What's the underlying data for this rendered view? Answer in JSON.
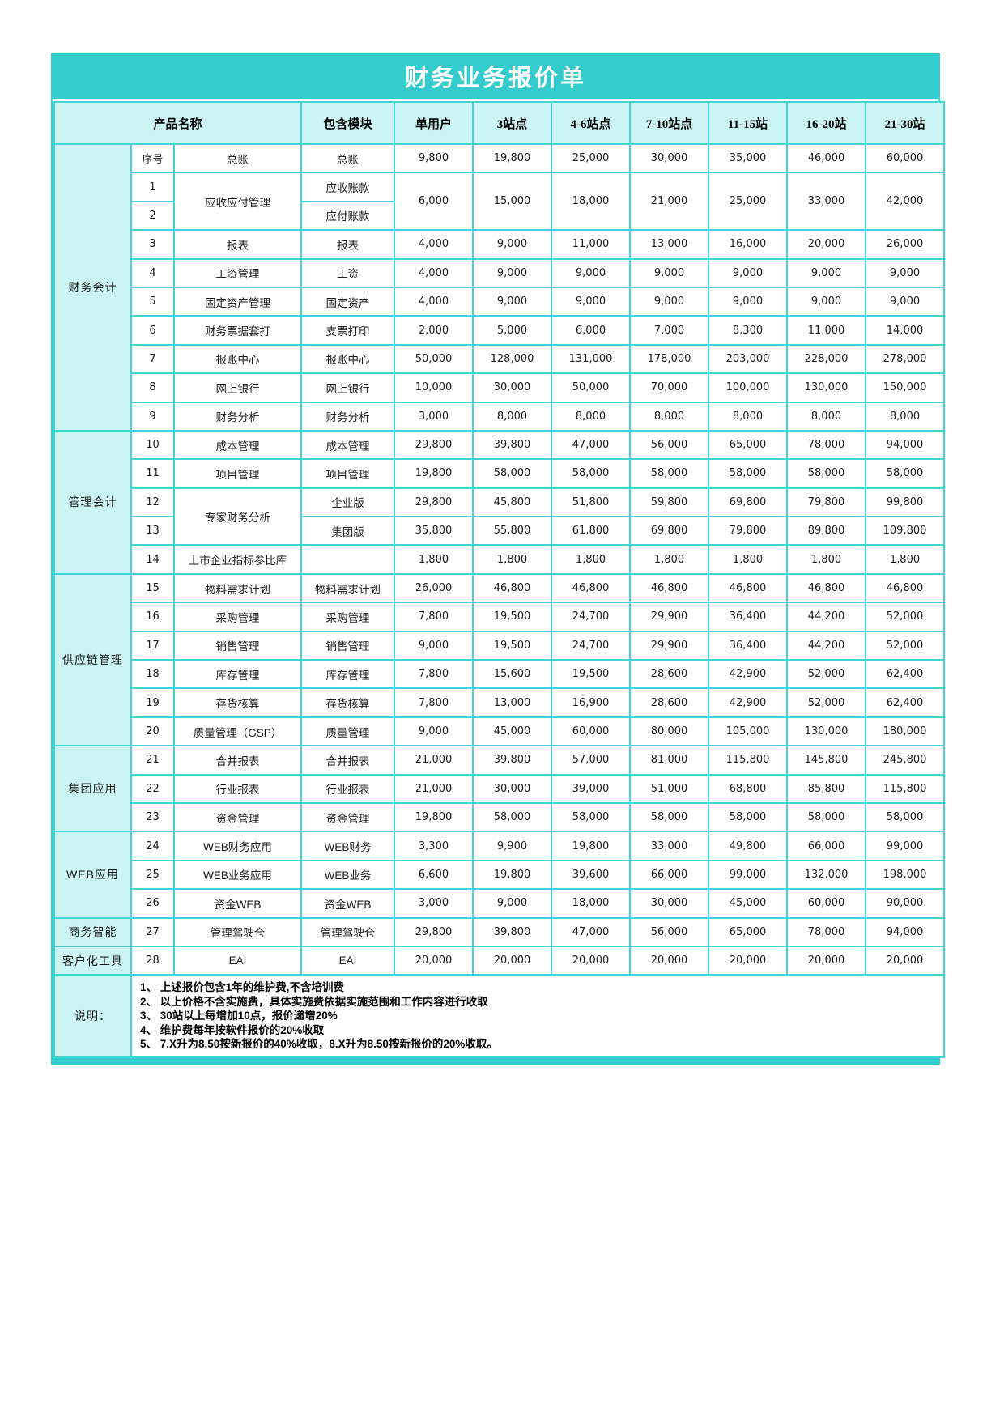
{
  "title": "财务业务报价单",
  "columns": [
    "产品名称",
    "包含模块",
    "单用户",
    "3站点",
    "4-6站点",
    "7-10站点",
    "11-15站",
    "16-20站",
    "21-30站"
  ],
  "notes_label": "说明：",
  "notes": [
    "1、 上述报价包含1年的维护费,不含培训费",
    "2、 以上价格不含实施费，具体实施费依据实施范围和工作内容进行收取",
    "3、 30站以上每增加10点，报价递增20%",
    "4、 维护费每年按软件报价的20%收取",
    "5、 7.X升为8.50按新报价的40%收取，8.X升为8.50按新报价的20%收取。"
  ],
  "categories": [
    {
      "name": "财务会计",
      "rows": [
        {
          "no": "序号",
          "product": "总账",
          "module": "总账",
          "prices": [
            "9,800",
            "19,800",
            "25,000",
            "30,000",
            "35,000",
            "46,000",
            "60,000"
          ]
        },
        {
          "no": "1",
          "product": "应收应付管理",
          "product_rowspan": 2,
          "module": "应收账款",
          "prices": [
            "6,000",
            "15,000",
            "18,000",
            "21,000",
            "25,000",
            "33,000",
            "42,000"
          ],
          "prices_rowspan": 2
        },
        {
          "no": "2",
          "module": "应付账款"
        },
        {
          "no": "3",
          "product": "报表",
          "module": "报表",
          "prices": [
            "4,000",
            "9,000",
            "11,000",
            "13,000",
            "16,000",
            "20,000",
            "26,000"
          ]
        },
        {
          "no": "4",
          "product": "工资管理",
          "module": "工资",
          "prices": [
            "4,000",
            "9,000",
            "9,000",
            "9,000",
            "9,000",
            "9,000",
            "9,000"
          ]
        },
        {
          "no": "5",
          "product": "固定资产管理",
          "module": "固定资产",
          "prices": [
            "4,000",
            "9,000",
            "9,000",
            "9,000",
            "9,000",
            "9,000",
            "9,000"
          ]
        },
        {
          "no": "6",
          "product": "财务票据套打",
          "module": "支票打印",
          "prices": [
            "2,000",
            "5,000",
            "6,000",
            "7,000",
            "8,300",
            "11,000",
            "14,000"
          ]
        },
        {
          "no": "7",
          "product": "报账中心",
          "module": "报账中心",
          "prices": [
            "50,000",
            "128,000",
            "131,000",
            "178,000",
            "203,000",
            "228,000",
            "278,000"
          ]
        },
        {
          "no": "8",
          "product": "网上银行",
          "module": "网上银行",
          "prices": [
            "10,000",
            "30,000",
            "50,000",
            "70,000",
            "100,000",
            "130,000",
            "150,000"
          ]
        },
        {
          "no": "9",
          "product": "财务分析",
          "module": "财务分析",
          "prices": [
            "3,000",
            "8,000",
            "8,000",
            "8,000",
            "8,000",
            "8,000",
            "8,000"
          ]
        }
      ]
    },
    {
      "name": "管理会计",
      "rows": [
        {
          "no": "10",
          "product": "成本管理",
          "module": "成本管理",
          "prices": [
            "29,800",
            "39,800",
            "47,000",
            "56,000",
            "65,000",
            "78,000",
            "94,000"
          ]
        },
        {
          "no": "11",
          "product": "项目管理",
          "module": "项目管理",
          "prices": [
            "19,800",
            "58,000",
            "58,000",
            "58,000",
            "58,000",
            "58,000",
            "58,000"
          ]
        },
        {
          "no": "12",
          "product": "专家财务分析",
          "product_rowspan": 2,
          "module": "企业版",
          "prices": [
            "29,800",
            "45,800",
            "51,800",
            "59,800",
            "69,800",
            "79,800",
            "99,800"
          ]
        },
        {
          "no": "13",
          "module": "集团版",
          "prices": [
            "35,800",
            "55,800",
            "61,800",
            "69,800",
            "79,800",
            "89,800",
            "109,800"
          ]
        },
        {
          "no": "14",
          "product": "上市企业指标参比库",
          "module": "",
          "prices": [
            "1,800",
            "1,800",
            "1,800",
            "1,800",
            "1,800",
            "1,800",
            "1,800"
          ]
        }
      ]
    },
    {
      "name": "供应链管理",
      "rows": [
        {
          "no": "15",
          "product": "物料需求计划",
          "module": "物料需求计划",
          "prices": [
            "26,000",
            "46,800",
            "46,800",
            "46,800",
            "46,800",
            "46,800",
            "46,800"
          ]
        },
        {
          "no": "16",
          "product": "采购管理",
          "module": "采购管理",
          "prices": [
            "7,800",
            "19,500",
            "24,700",
            "29,900",
            "36,400",
            "44,200",
            "52,000"
          ]
        },
        {
          "no": "17",
          "product": "销售管理",
          "module": "销售管理",
          "prices": [
            "9,000",
            "19,500",
            "24,700",
            "29,900",
            "36,400",
            "44,200",
            "52,000"
          ]
        },
        {
          "no": "18",
          "product": "库存管理",
          "module": "库存管理",
          "prices": [
            "7,800",
            "15,600",
            "19,500",
            "28,600",
            "42,900",
            "52,000",
            "62,400"
          ]
        },
        {
          "no": "19",
          "product": "存货核算",
          "module": "存货核算",
          "prices": [
            "7,800",
            "13,000",
            "16,900",
            "28,600",
            "42,900",
            "52,000",
            "62,400"
          ]
        },
        {
          "no": "20",
          "product": "质量管理（GSP）",
          "module": "质量管理",
          "prices": [
            "9,000",
            "45,000",
            "60,000",
            "80,000",
            "105,000",
            "130,000",
            "180,000"
          ]
        }
      ]
    },
    {
      "name": "集团应用",
      "rows": [
        {
          "no": "21",
          "product": "合并报表",
          "module": "合并报表",
          "prices": [
            "21,000",
            "39,800",
            "57,000",
            "81,000",
            "115,800",
            "145,800",
            "245,800"
          ]
        },
        {
          "no": "22",
          "product": "行业报表",
          "module": "行业报表",
          "prices": [
            "21,000",
            "30,000",
            "39,000",
            "51,000",
            "68,800",
            "85,800",
            "115,800"
          ]
        },
        {
          "no": "23",
          "product": "资金管理",
          "module": "资金管理",
          "prices": [
            "19,800",
            "58,000",
            "58,000",
            "58,000",
            "58,000",
            "58,000",
            "58,000"
          ]
        }
      ]
    },
    {
      "name": "WEB应用",
      "rows": [
        {
          "no": "24",
          "product": "WEB财务应用",
          "module": "WEB财务",
          "prices": [
            "3,300",
            "9,900",
            "19,800",
            "33,000",
            "49,800",
            "66,000",
            "99,000"
          ]
        },
        {
          "no": "25",
          "product": "WEB业务应用",
          "module": "WEB业务",
          "prices": [
            "6,600",
            "19,800",
            "39,600",
            "66,000",
            "99,000",
            "132,000",
            "198,000"
          ]
        },
        {
          "no": "26",
          "product": "资金WEB",
          "module": "资金WEB",
          "prices": [
            "3,000",
            "9,000",
            "18,000",
            "30,000",
            "45,000",
            "60,000",
            "90,000"
          ]
        }
      ]
    },
    {
      "name": "商务智能",
      "rows": [
        {
          "no": "27",
          "product": "管理驾驶仓",
          "module": "管理驾驶仓",
          "prices": [
            "29,800",
            "39,800",
            "47,000",
            "56,000",
            "65,000",
            "78,000",
            "94,000"
          ]
        }
      ]
    },
    {
      "name": "客户化工具",
      "rows": [
        {
          "no": "28",
          "product": "EAI",
          "module": "EAI",
          "prices": [
            "20,000",
            "20,000",
            "20,000",
            "20,000",
            "20,000",
            "20,000",
            "20,000"
          ]
        }
      ]
    }
  ]
}
